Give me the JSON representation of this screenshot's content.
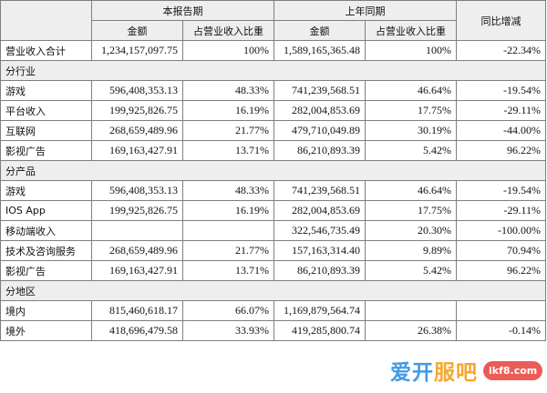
{
  "headers": {
    "current_period": "本报告期",
    "prior_period": "上年同期",
    "yoy_change": "同比增减",
    "amount": "金额",
    "revenue_share": "占营业收入比重"
  },
  "total_row": {
    "label": "营业收入合计",
    "cur_amount": "1,234,157,097.75",
    "cur_share": "100%",
    "prev_amount": "1,589,165,365.48",
    "prev_share": "100%",
    "yoy": "-22.34%"
  },
  "sections": [
    {
      "title": "分行业",
      "rows": [
        {
          "label": "游戏",
          "cur_amount": "596,408,353.13",
          "cur_share": "48.33%",
          "prev_amount": "741,239,568.51",
          "prev_share": "46.64%",
          "yoy": "-19.54%"
        },
        {
          "label": "平台收入",
          "cur_amount": "199,925,826.75",
          "cur_share": "16.19%",
          "prev_amount": "282,004,853.69",
          "prev_share": "17.75%",
          "yoy": "-29.11%"
        },
        {
          "label": "互联网",
          "cur_amount": "268,659,489.96",
          "cur_share": "21.77%",
          "prev_amount": "479,710,049.89",
          "prev_share": "30.19%",
          "yoy": "-44.00%"
        },
        {
          "label": "影视广告",
          "cur_amount": "169,163,427.91",
          "cur_share": "13.71%",
          "prev_amount": "86,210,893.39",
          "prev_share": "5.42%",
          "yoy": "96.22%"
        }
      ]
    },
    {
      "title": "分产品",
      "rows": [
        {
          "label": "游戏",
          "cur_amount": "596,408,353.13",
          "cur_share": "48.33%",
          "prev_amount": "741,239,568.51",
          "prev_share": "46.64%",
          "yoy": "-19.54%"
        },
        {
          "label": "IOS App",
          "cur_amount": "199,925,826.75",
          "cur_share": "16.19%",
          "prev_amount": "282,004,853.69",
          "prev_share": "17.75%",
          "yoy": "-29.11%"
        },
        {
          "label": "移动端收入",
          "cur_amount": "",
          "cur_share": "",
          "prev_amount": "322,546,735.49",
          "prev_share": "20.30%",
          "yoy": "-100.00%"
        },
        {
          "label": "技术及咨询服务",
          "cur_amount": "268,659,489.96",
          "cur_share": "21.77%",
          "prev_amount": "157,163,314.40",
          "prev_share": "9.89%",
          "yoy": "70.94%"
        },
        {
          "label": "影视广告",
          "cur_amount": "169,163,427.91",
          "cur_share": "13.71%",
          "prev_amount": "86,210,893.39",
          "prev_share": "5.42%",
          "yoy": "96.22%"
        }
      ]
    },
    {
      "title": "分地区",
      "rows": [
        {
          "label": "境内",
          "cur_amount": "815,460,618.17",
          "cur_share": "66.07%",
          "prev_amount": "1,169,879,564.74",
          "prev_share": "",
          "yoy": ""
        },
        {
          "label": "境外",
          "cur_amount": "418,696,479.58",
          "cur_share": "33.93%",
          "prev_amount": "419,285,800.74",
          "prev_share": "26.38%",
          "yoy": "-0.14%"
        }
      ]
    }
  ],
  "watermark": {
    "brand_main": "爱开",
    "brand_accent": "服吧",
    "badge": "ikf8.com"
  }
}
